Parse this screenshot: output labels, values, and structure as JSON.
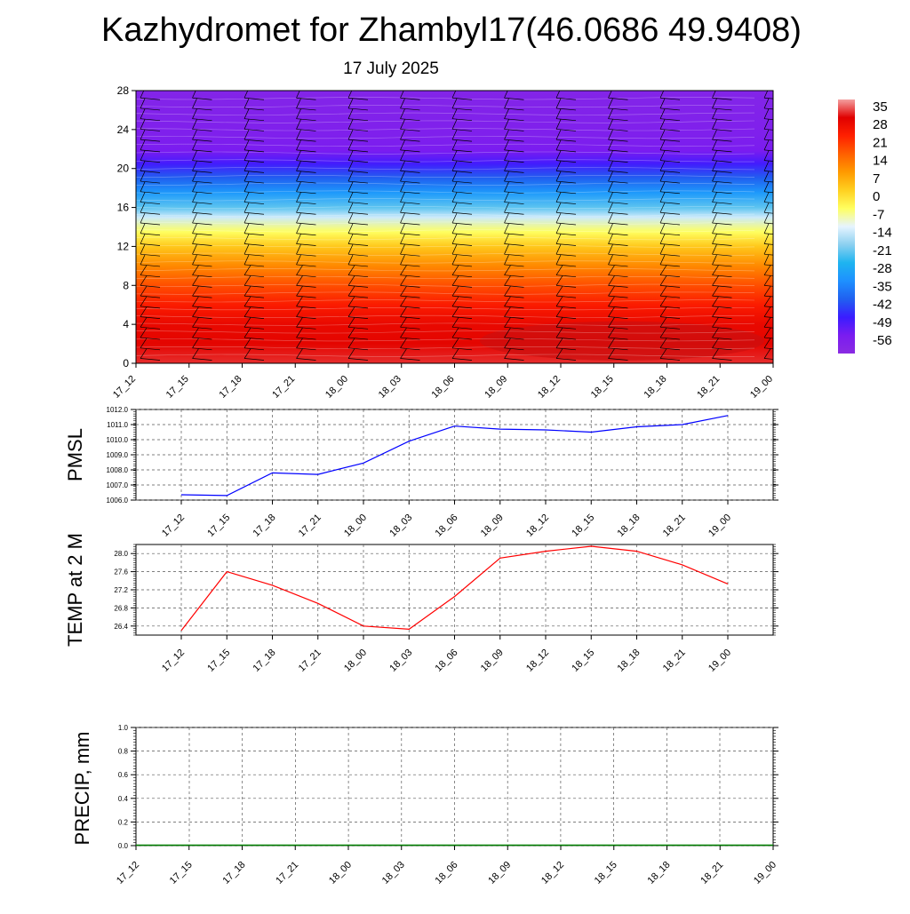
{
  "header": {
    "title": "Kazhydromet for Zhambyl17(46.0686 49.9408)",
    "date": "17 July 2025"
  },
  "time_labels": [
    "17_12",
    "17_15",
    "17_18",
    "17_21",
    "18_00",
    "18_03",
    "18_06",
    "18_09",
    "18_12",
    "18_15",
    "18_18",
    "18_21",
    "19_00"
  ],
  "chart_data": [
    {
      "type": "heatmap",
      "name": "temperature-cross-section",
      "x": [
        "17_12",
        "17_15",
        "17_18",
        "17_21",
        "18_00",
        "18_03",
        "18_06",
        "18_09",
        "18_12",
        "18_15",
        "18_18",
        "18_21",
        "19_00"
      ],
      "ylim": [
        0,
        28
      ],
      "yticks": [
        0,
        4,
        8,
        12,
        16,
        20,
        24,
        28
      ],
      "colorbar": {
        "labels": [
          35,
          28,
          21,
          14,
          7,
          0,
          -7,
          -14,
          -21,
          -28,
          -35,
          -42,
          -49,
          -56
        ],
        "stops": [
          {
            "v": -63,
            "c": "#8a2be2"
          },
          {
            "v": -56,
            "c": "#7a1cf0"
          },
          {
            "v": -49,
            "c": "#3a1cff"
          },
          {
            "v": -42,
            "c": "#2060f0"
          },
          {
            "v": -35,
            "c": "#1e90ff"
          },
          {
            "v": -28,
            "c": "#1eb4f0"
          },
          {
            "v": -21,
            "c": "#8cd0f0"
          },
          {
            "v": -14,
            "c": "#e6f4ff"
          },
          {
            "v": -7,
            "c": "#ffff60"
          },
          {
            "v": 0,
            "c": "#ffd020"
          },
          {
            "v": 7,
            "c": "#ff9a00"
          },
          {
            "v": 14,
            "c": "#ff6000"
          },
          {
            "v": 21,
            "c": "#ff2000"
          },
          {
            "v": 28,
            "c": "#e00000"
          },
          {
            "v": 35,
            "c": "#f4a0a0"
          }
        ]
      },
      "profile": [
        {
          "h": 0,
          "t": 30
        },
        {
          "h": 2,
          "t": 27
        },
        {
          "h": 4,
          "t": 26
        },
        {
          "h": 6,
          "t": 22
        },
        {
          "h": 8,
          "t": 16
        },
        {
          "h": 10,
          "t": 9
        },
        {
          "h": 12,
          "t": 1
        },
        {
          "h": 13.5,
          "t": -7
        },
        {
          "h": 15,
          "t": -16
        },
        {
          "h": 16,
          "t": -24
        },
        {
          "h": 17.5,
          "t": -33
        },
        {
          "h": 19,
          "t": -42
        },
        {
          "h": 20.5,
          "t": -50
        },
        {
          "h": 21.8,
          "t": -56
        },
        {
          "h": 23.5,
          "t": -58
        },
        {
          "h": 28,
          "t": -60
        }
      ]
    },
    {
      "type": "line",
      "name": "pmsl",
      "ylabel": "PMSL",
      "x": [
        "17_12",
        "17_15",
        "17_18",
        "17_21",
        "18_00",
        "18_03",
        "18_06",
        "18_09",
        "18_12",
        "18_15",
        "18_18",
        "18_21",
        "19_00"
      ],
      "values": [
        1006.35,
        1006.3,
        1007.8,
        1007.7,
        1008.45,
        1009.9,
        1010.9,
        1010.7,
        1010.65,
        1010.5,
        1010.85,
        1011.0,
        1011.6
      ],
      "ylim": [
        1006.0,
        1012.0
      ],
      "yticks": [
        "1006.0",
        "1007.0",
        "1008.0",
        "1009.0",
        "1010.0",
        "1011.0",
        "1012.0"
      ],
      "color": "#0000ff"
    },
    {
      "type": "line",
      "name": "temp-2m",
      "ylabel": "TEMP at 2 M",
      "x": [
        "17_12",
        "17_15",
        "17_18",
        "17_21",
        "18_00",
        "18_03",
        "18_06",
        "18_09",
        "18_12",
        "18_15",
        "18_18",
        "18_21",
        "19_00"
      ],
      "values": [
        26.3,
        27.6,
        27.3,
        26.9,
        26.4,
        26.33,
        27.05,
        27.9,
        28.05,
        28.16,
        28.05,
        27.75,
        27.33
      ],
      "ylim": [
        26.2,
        28.2
      ],
      "yticks": [
        "26.4",
        "26.8",
        "27.2",
        "27.6",
        "28.0"
      ],
      "color": "#ff0000"
    },
    {
      "type": "line",
      "name": "precip",
      "ylabel": "PRECIP, mm",
      "x": [
        "17_12",
        "17_15",
        "17_18",
        "17_21",
        "18_00",
        "18_03",
        "18_06",
        "18_09",
        "18_12",
        "18_15",
        "18_18",
        "18_21",
        "19_00"
      ],
      "values": [
        0,
        0,
        0,
        0,
        0,
        0,
        0,
        0,
        0,
        0,
        0,
        0,
        0
      ],
      "ylim": [
        0,
        1.0
      ],
      "yticks": [
        "0.0",
        "0.2",
        "0.4",
        "0.6",
        "0.8",
        "1.0"
      ],
      "color": "#008000"
    }
  ]
}
